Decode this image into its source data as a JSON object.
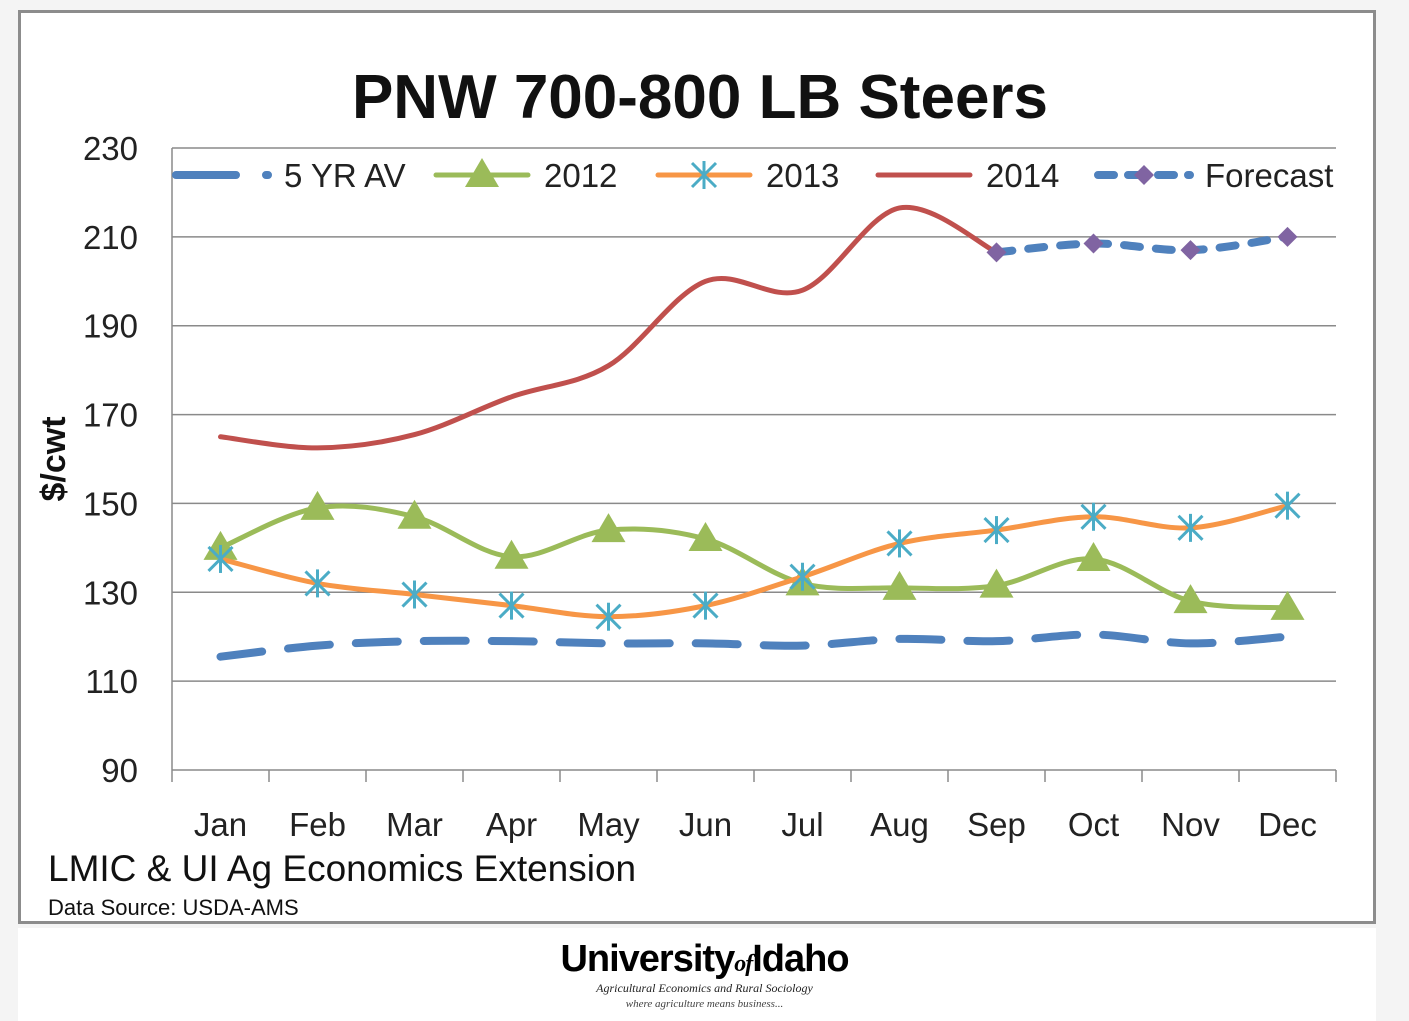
{
  "chart_data": {
    "type": "line",
    "title": "PNW 700-800 LB Steers",
    "ylabel": "$/cwt",
    "xlabel": "",
    "ylim": [
      90,
      230
    ],
    "yticks": [
      90,
      110,
      130,
      150,
      170,
      190,
      210,
      230
    ],
    "categories": [
      "Jan",
      "Feb",
      "Mar",
      "Apr",
      "May",
      "Jun",
      "Jul",
      "Aug",
      "Sep",
      "Oct",
      "Nov",
      "Dec"
    ],
    "grid": true,
    "legend": "top",
    "series": [
      {
        "name": "5 YR AV",
        "color": "#4f81bd",
        "style": "dashed",
        "marker": "none",
        "values": [
          115.5,
          118,
          119,
          119,
          118.5,
          118.5,
          118,
          119.5,
          119,
          120.5,
          118.5,
          120
        ]
      },
      {
        "name": "2012",
        "color": "#9bbb59",
        "style": "solid",
        "marker": "triangle",
        "values": [
          140,
          149,
          147,
          138,
          144,
          142,
          132,
          131,
          131.5,
          137.5,
          128,
          126.5
        ]
      },
      {
        "name": "2013",
        "color": "#f79646",
        "style": "solid",
        "marker": "asterisk",
        "values": [
          137.5,
          132,
          129.5,
          127,
          124.5,
          127,
          133.5,
          141,
          144,
          147,
          144.5,
          149.5
        ]
      },
      {
        "name": "2014",
        "color": "#c0504d",
        "style": "solid",
        "marker": "none",
        "values": [
          165,
          162.5,
          165.5,
          174,
          181,
          200,
          198,
          216.5,
          206.5,
          null,
          null,
          null
        ]
      },
      {
        "name": "Forecast",
        "color": "#4f81bd",
        "marker_color": "#8064a2",
        "style": "dashed",
        "marker": "diamond",
        "values": [
          null,
          null,
          null,
          null,
          null,
          null,
          null,
          null,
          206.5,
          208.5,
          207,
          210
        ]
      }
    ]
  },
  "footer": {
    "credit": "LMIC & UI Ag Economics Extension",
    "source": "Data Source: USDA-AMS",
    "logo_university": "University",
    "logo_of": "of",
    "logo_idaho": "Idaho",
    "logo_department": "Agricultural Economics and Rural Sociology",
    "logo_tagline": "where agriculture means business..."
  }
}
